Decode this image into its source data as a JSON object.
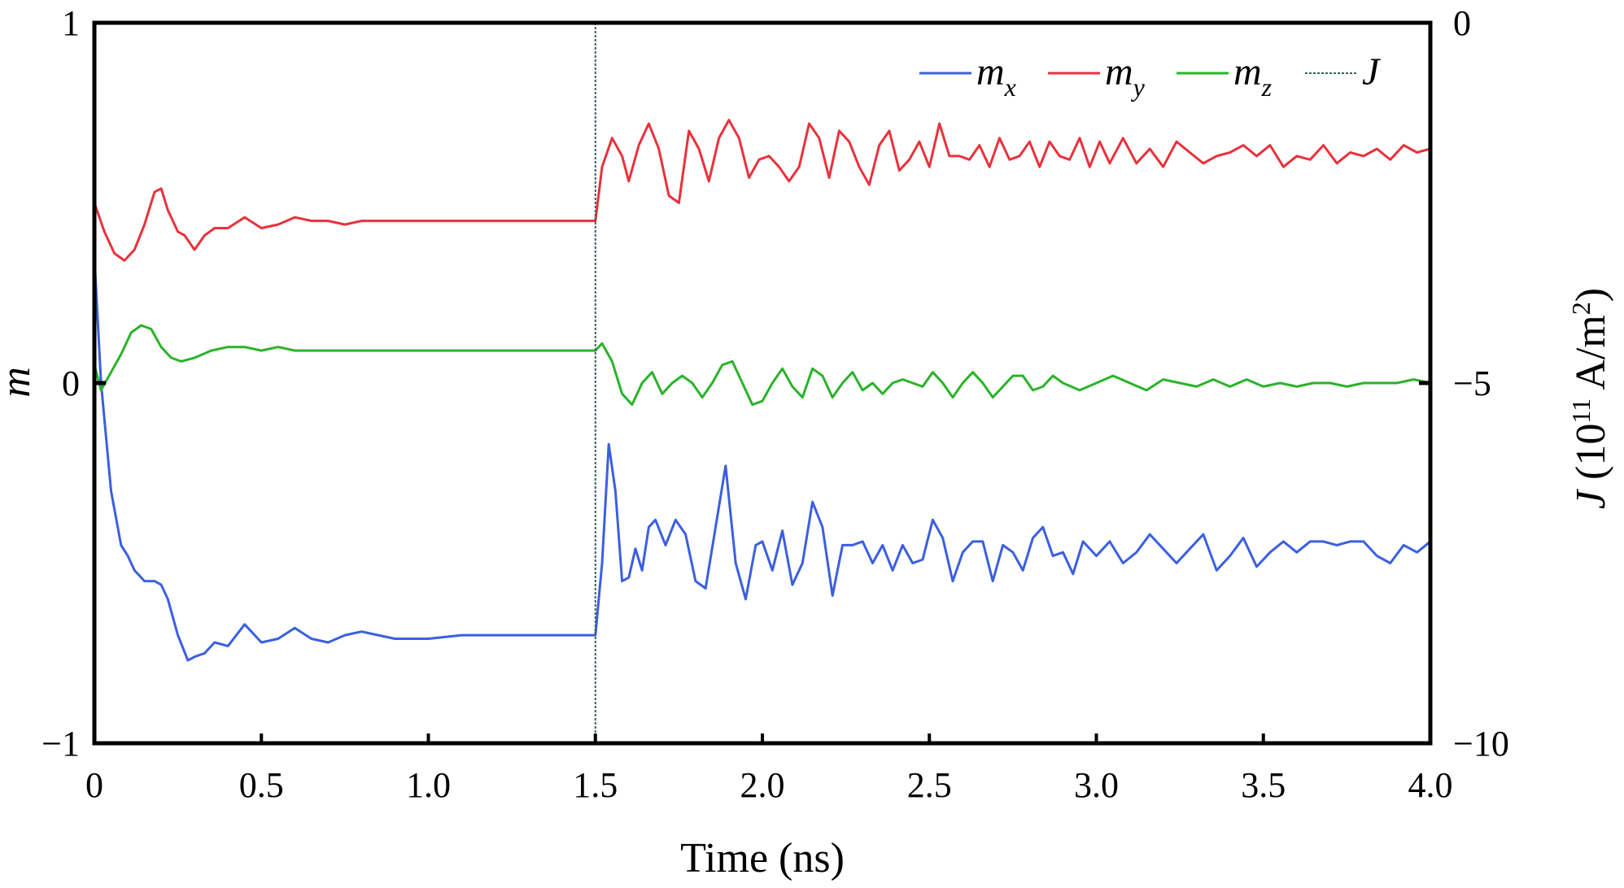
{
  "chart_data": {
    "type": "line",
    "xlabel": "Time (ns)",
    "ylabel_left": "m",
    "ylabel_right": {
      "main": "J (10",
      "sup": "11",
      "unit": " A/m",
      "sup2": "2",
      "close": ")"
    },
    "xlim": [
      0,
      4.0
    ],
    "ylim_left": [
      -1,
      1
    ],
    "ylim_right": [
      -10,
      0
    ],
    "x_ticks": [
      "0",
      "0.5",
      "1.0",
      "1.5",
      "2.0",
      "2.5",
      "3.0",
      "3.5",
      "4.0"
    ],
    "y_left_ticks": [
      "−1",
      "0",
      "1"
    ],
    "y_right_ticks": [
      "−10",
      "−5",
      "0"
    ],
    "grid": false,
    "legend_position": "top-right",
    "series": [
      {
        "name": "m",
        "sub": "x",
        "color": "#3b5fe0",
        "x": [
          0,
          0.02,
          0.05,
          0.08,
          0.1,
          0.12,
          0.15,
          0.18,
          0.2,
          0.22,
          0.25,
          0.28,
          0.3,
          0.33,
          0.36,
          0.4,
          0.45,
          0.5,
          0.55,
          0.6,
          0.65,
          0.7,
          0.75,
          0.8,
          0.85,
          0.9,
          0.95,
          1.0,
          1.1,
          1.2,
          1.3,
          1.4,
          1.49,
          1.5,
          1.52,
          1.54,
          1.56,
          1.58,
          1.6,
          1.62,
          1.64,
          1.66,
          1.68,
          1.71,
          1.74,
          1.77,
          1.8,
          1.83,
          1.86,
          1.89,
          1.92,
          1.95,
          1.98,
          2.0,
          2.03,
          2.06,
          2.09,
          2.12,
          2.15,
          2.18,
          2.21,
          2.24,
          2.27,
          2.3,
          2.33,
          2.36,
          2.39,
          2.42,
          2.45,
          2.48,
          2.51,
          2.54,
          2.57,
          2.6,
          2.63,
          2.66,
          2.69,
          2.72,
          2.75,
          2.78,
          2.81,
          2.84,
          2.87,
          2.9,
          2.93,
          2.96,
          3.0,
          3.04,
          3.08,
          3.12,
          3.16,
          3.2,
          3.24,
          3.28,
          3.32,
          3.36,
          3.4,
          3.44,
          3.48,
          3.52,
          3.56,
          3.6,
          3.64,
          3.68,
          3.72,
          3.76,
          3.8,
          3.84,
          3.88,
          3.92,
          3.96,
          4.0
        ],
        "values": [
          0.35,
          0.0,
          -0.3,
          -0.45,
          -0.48,
          -0.52,
          -0.55,
          -0.55,
          -0.56,
          -0.6,
          -0.7,
          -0.77,
          -0.76,
          -0.75,
          -0.72,
          -0.73,
          -0.67,
          -0.72,
          -0.71,
          -0.68,
          -0.71,
          -0.72,
          -0.7,
          -0.69,
          -0.7,
          -0.71,
          -0.71,
          -0.71,
          -0.7,
          -0.7,
          -0.7,
          -0.7,
          -0.7,
          -0.7,
          -0.5,
          -0.17,
          -0.3,
          -0.55,
          -0.54,
          -0.46,
          -0.52,
          -0.4,
          -0.38,
          -0.45,
          -0.38,
          -0.42,
          -0.55,
          -0.57,
          -0.4,
          -0.23,
          -0.5,
          -0.6,
          -0.45,
          -0.44,
          -0.52,
          -0.41,
          -0.56,
          -0.5,
          -0.33,
          -0.4,
          -0.59,
          -0.45,
          -0.45,
          -0.44,
          -0.5,
          -0.45,
          -0.52,
          -0.45,
          -0.5,
          -0.49,
          -0.38,
          -0.43,
          -0.55,
          -0.47,
          -0.44,
          -0.44,
          -0.55,
          -0.45,
          -0.47,
          -0.52,
          -0.43,
          -0.4,
          -0.48,
          -0.47,
          -0.53,
          -0.44,
          -0.48,
          -0.44,
          -0.5,
          -0.47,
          -0.42,
          -0.46,
          -0.5,
          -0.46,
          -0.42,
          -0.52,
          -0.48,
          -0.43,
          -0.51,
          -0.47,
          -0.44,
          -0.47,
          -0.44,
          -0.44,
          -0.45,
          -0.44,
          -0.44,
          -0.48,
          -0.5,
          -0.45,
          -0.47,
          -0.44
        ]
      },
      {
        "name": "m",
        "sub": "y",
        "color": "#e8323c",
        "x": [
          0,
          0.03,
          0.06,
          0.09,
          0.12,
          0.15,
          0.18,
          0.2,
          0.22,
          0.25,
          0.27,
          0.3,
          0.33,
          0.36,
          0.4,
          0.45,
          0.5,
          0.55,
          0.6,
          0.65,
          0.7,
          0.75,
          0.8,
          0.85,
          0.9,
          1.0,
          1.1,
          1.2,
          1.3,
          1.4,
          1.49,
          1.5,
          1.52,
          1.55,
          1.58,
          1.6,
          1.63,
          1.66,
          1.69,
          1.72,
          1.75,
          1.78,
          1.81,
          1.84,
          1.87,
          1.9,
          1.93,
          1.96,
          1.99,
          2.02,
          2.05,
          2.08,
          2.11,
          2.14,
          2.17,
          2.2,
          2.23,
          2.26,
          2.29,
          2.32,
          2.35,
          2.38,
          2.41,
          2.44,
          2.47,
          2.5,
          2.53,
          2.56,
          2.59,
          2.62,
          2.65,
          2.68,
          2.71,
          2.74,
          2.77,
          2.8,
          2.83,
          2.86,
          2.89,
          2.92,
          2.95,
          2.98,
          3.01,
          3.04,
          3.08,
          3.12,
          3.16,
          3.2,
          3.24,
          3.28,
          3.32,
          3.36,
          3.4,
          3.44,
          3.48,
          3.52,
          3.56,
          3.6,
          3.64,
          3.68,
          3.72,
          3.76,
          3.8,
          3.84,
          3.88,
          3.92,
          3.96,
          4.0
        ],
        "values": [
          0.5,
          0.42,
          0.36,
          0.34,
          0.37,
          0.44,
          0.53,
          0.54,
          0.48,
          0.42,
          0.41,
          0.37,
          0.41,
          0.43,
          0.43,
          0.46,
          0.43,
          0.44,
          0.46,
          0.45,
          0.45,
          0.44,
          0.45,
          0.45,
          0.45,
          0.45,
          0.45,
          0.45,
          0.45,
          0.45,
          0.45,
          0.45,
          0.6,
          0.68,
          0.63,
          0.56,
          0.66,
          0.72,
          0.65,
          0.52,
          0.5,
          0.7,
          0.65,
          0.56,
          0.68,
          0.73,
          0.68,
          0.57,
          0.62,
          0.63,
          0.6,
          0.56,
          0.6,
          0.72,
          0.68,
          0.57,
          0.7,
          0.67,
          0.6,
          0.55,
          0.66,
          0.7,
          0.59,
          0.62,
          0.67,
          0.6,
          0.72,
          0.63,
          0.63,
          0.62,
          0.66,
          0.6,
          0.68,
          0.62,
          0.63,
          0.67,
          0.6,
          0.67,
          0.63,
          0.62,
          0.68,
          0.6,
          0.67,
          0.61,
          0.68,
          0.61,
          0.65,
          0.6,
          0.67,
          0.64,
          0.61,
          0.63,
          0.64,
          0.66,
          0.63,
          0.66,
          0.6,
          0.63,
          0.62,
          0.66,
          0.61,
          0.64,
          0.63,
          0.65,
          0.62,
          0.66,
          0.64,
          0.65
        ]
      },
      {
        "name": "m",
        "sub": "z",
        "color": "#2ab32a",
        "x": [
          0,
          0.02,
          0.05,
          0.08,
          0.11,
          0.14,
          0.17,
          0.2,
          0.23,
          0.26,
          0.3,
          0.35,
          0.4,
          0.45,
          0.5,
          0.55,
          0.6,
          0.65,
          0.7,
          0.8,
          0.9,
          1.0,
          1.1,
          1.2,
          1.3,
          1.4,
          1.49,
          1.5,
          1.52,
          1.55,
          1.58,
          1.61,
          1.64,
          1.67,
          1.7,
          1.73,
          1.76,
          1.79,
          1.82,
          1.85,
          1.88,
          1.91,
          1.94,
          1.97,
          2.0,
          2.03,
          2.06,
          2.09,
          2.12,
          2.15,
          2.18,
          2.21,
          2.24,
          2.27,
          2.3,
          2.33,
          2.36,
          2.39,
          2.42,
          2.45,
          2.48,
          2.51,
          2.54,
          2.57,
          2.6,
          2.63,
          2.66,
          2.69,
          2.72,
          2.75,
          2.78,
          2.81,
          2.84,
          2.87,
          2.9,
          2.95,
          3.0,
          3.05,
          3.1,
          3.15,
          3.2,
          3.25,
          3.3,
          3.35,
          3.4,
          3.45,
          3.5,
          3.55,
          3.6,
          3.65,
          3.7,
          3.75,
          3.8,
          3.85,
          3.9,
          3.95,
          4.0
        ],
        "values": [
          0.05,
          -0.02,
          0.03,
          0.08,
          0.14,
          0.16,
          0.15,
          0.1,
          0.07,
          0.06,
          0.07,
          0.09,
          0.1,
          0.1,
          0.09,
          0.1,
          0.09,
          0.09,
          0.09,
          0.09,
          0.09,
          0.09,
          0.09,
          0.09,
          0.09,
          0.09,
          0.09,
          0.09,
          0.11,
          0.06,
          -0.03,
          -0.06,
          0.0,
          0.03,
          -0.03,
          0.0,
          0.02,
          0.0,
          -0.04,
          0.0,
          0.05,
          0.06,
          0.0,
          -0.06,
          -0.05,
          0.0,
          0.04,
          -0.01,
          -0.04,
          0.04,
          0.02,
          -0.04,
          0.0,
          0.03,
          -0.02,
          0.0,
          -0.03,
          0.0,
          0.01,
          0.0,
          -0.01,
          0.03,
          0.0,
          -0.04,
          0.0,
          0.03,
          0.0,
          -0.04,
          -0.01,
          0.02,
          0.02,
          -0.02,
          -0.01,
          0.02,
          0.0,
          -0.02,
          0.0,
          0.02,
          0.0,
          -0.02,
          0.01,
          0.0,
          -0.01,
          0.01,
          -0.01,
          0.01,
          -0.01,
          0.0,
          -0.01,
          0.0,
          0.0,
          -0.01,
          0.0,
          0.0,
          0.0,
          0.01,
          0.0
        ]
      },
      {
        "name": "J",
        "color": "#3a5f5f",
        "axis": "right",
        "x": [
          1.5,
          1.5
        ],
        "values": [
          0,
          -10
        ]
      }
    ]
  }
}
